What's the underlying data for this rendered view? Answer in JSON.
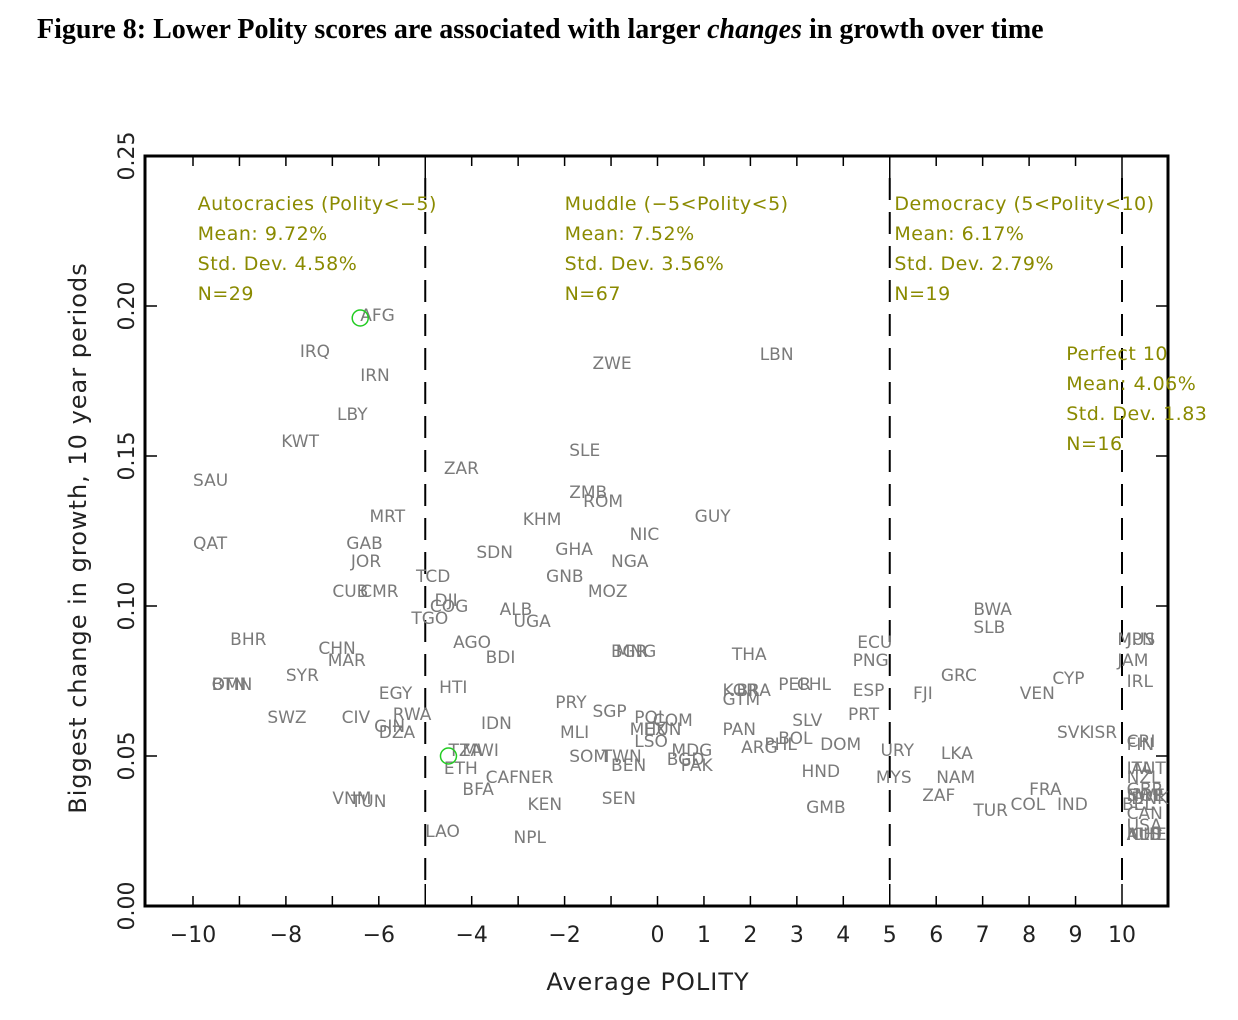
{
  "figure": {
    "title_prefix": "Figure 8:  Lower Polity scores are associated with larger ",
    "title_emph": "changes",
    "title_suffix": " in growth over time"
  },
  "chart_data": {
    "type": "scatter",
    "title": "Figure 8: Lower Polity scores are associated with larger changes in growth over time",
    "xlabel": "Average POLITY",
    "ylabel": "Biggest change in growth, 10 year periods",
    "xlim": [
      -11,
      11
    ],
    "ylim": [
      0,
      0.25
    ],
    "xticks": [
      -10,
      -8,
      -6,
      -4,
      -2,
      0,
      1,
      2,
      3,
      4,
      5,
      6,
      7,
      8,
      9,
      10
    ],
    "xtick_labels": [
      "-10",
      "-8",
      "-6",
      "-4",
      "-2",
      "0",
      "1",
      "2",
      "3",
      "4",
      "5",
      "6",
      "7",
      "8",
      "9",
      "10"
    ],
    "yticks": [
      0,
      0.05,
      0.1,
      0.15,
      0.2,
      0.25
    ],
    "ytick_labels": [
      "0.00",
      "0.05",
      "0.10",
      "0.15",
      "0.20",
      "0.25"
    ],
    "grid": false,
    "dividers": [
      -5,
      5,
      10
    ],
    "highlighted_points": [
      {
        "x": -6.4,
        "y": 0.196,
        "color": "#22cc22"
      },
      {
        "x": -4.5,
        "y": 0.05,
        "color": "#22cc22"
      }
    ],
    "annotations": [
      {
        "lines": [
          "Autocracies (Polity<-5)",
          "Mean: 9.72%",
          "Std. Dev. 4.58%",
          "N=29"
        ],
        "x": -9.9,
        "y": 0.232
      },
      {
        "lines": [
          "Muddle (-5<Polity<5)",
          "Mean: 7.52%",
          "Std. Dev. 3.56%",
          "N=67"
        ],
        "x": -2.0,
        "y": 0.232
      },
      {
        "lines": [
          "Democracy (5<Polity<10)",
          "Mean: 6.17%",
          "Std. Dev. 2.79%",
          "N=19"
        ],
        "x": 5.1,
        "y": 0.232
      },
      {
        "lines": [
          "Perfect 10",
          "Mean: 4.06%",
          "Std. Dev. 1.83",
          "N=16"
        ],
        "x": 8.8,
        "y": 0.182
      }
    ],
    "points": [
      {
        "label": "AFG",
        "x": -6.4,
        "y": 0.197
      },
      {
        "label": "IRQ",
        "x": -7.7,
        "y": 0.185
      },
      {
        "label": "IRN",
        "x": -6.4,
        "y": 0.177
      },
      {
        "label": "LBY",
        "x": -6.9,
        "y": 0.164
      },
      {
        "label": "KWT",
        "x": -8.1,
        "y": 0.155
      },
      {
        "label": "SAU",
        "x": -10.0,
        "y": 0.142
      },
      {
        "label": "QAT",
        "x": -10.0,
        "y": 0.121
      },
      {
        "label": "MRT",
        "x": -6.2,
        "y": 0.13
      },
      {
        "label": "GAB",
        "x": -6.7,
        "y": 0.121
      },
      {
        "label": "JOR",
        "x": -6.6,
        "y": 0.115
      },
      {
        "label": "CUB",
        "x": -7.0,
        "y": 0.105
      },
      {
        "label": "CMR",
        "x": -6.4,
        "y": 0.105
      },
      {
        "label": "TCD",
        "x": -5.2,
        "y": 0.11
      },
      {
        "label": "DJI",
        "x": -4.8,
        "y": 0.102
      },
      {
        "label": "COG",
        "x": -4.9,
        "y": 0.1
      },
      {
        "label": "TGO",
        "x": -5.3,
        "y": 0.096
      },
      {
        "label": "BHR",
        "x": -9.2,
        "y": 0.089
      },
      {
        "label": "CHN",
        "x": -7.3,
        "y": 0.086
      },
      {
        "label": "MAR",
        "x": -7.1,
        "y": 0.082
      },
      {
        "label": "SYR",
        "x": -8.0,
        "y": 0.077
      },
      {
        "label": "BTN",
        "x": -9.6,
        "y": 0.074
      },
      {
        "label": "OMN",
        "x": -9.6,
        "y": 0.074
      },
      {
        "label": "EGY",
        "x": -6.0,
        "y": 0.071
      },
      {
        "label": "SWZ",
        "x": -8.4,
        "y": 0.063
      },
      {
        "label": "CIV",
        "x": -6.8,
        "y": 0.063
      },
      {
        "label": "RWA",
        "x": -5.7,
        "y": 0.064
      },
      {
        "label": "GIN",
        "x": -6.1,
        "y": 0.06
      },
      {
        "label": "DZA",
        "x": -6.0,
        "y": 0.058
      },
      {
        "label": "VNM",
        "x": -7.0,
        "y": 0.036
      },
      {
        "label": "TUN",
        "x": -6.6,
        "y": 0.035
      },
      {
        "label": "ZAR",
        "x": -4.6,
        "y": 0.146
      },
      {
        "label": "SDN",
        "x": -3.9,
        "y": 0.118
      },
      {
        "label": "ALB",
        "x": -3.4,
        "y": 0.099
      },
      {
        "label": "UGA",
        "x": -3.1,
        "y": 0.095
      },
      {
        "label": "AGO",
        "x": -4.4,
        "y": 0.088
      },
      {
        "label": "BDI",
        "x": -3.7,
        "y": 0.083
      },
      {
        "label": "HTI",
        "x": -4.7,
        "y": 0.073
      },
      {
        "label": "IDN",
        "x": -3.8,
        "y": 0.061
      },
      {
        "label": "TZA",
        "x": -4.5,
        "y": 0.052
      },
      {
        "label": "MWI",
        "x": -4.2,
        "y": 0.052
      },
      {
        "label": "ETH",
        "x": -4.6,
        "y": 0.046
      },
      {
        "label": "CAF",
        "x": -3.7,
        "y": 0.043
      },
      {
        "label": "NER",
        "x": -3.0,
        "y": 0.043
      },
      {
        "label": "BFA",
        "x": -4.2,
        "y": 0.039
      },
      {
        "label": "KEN",
        "x": -2.8,
        "y": 0.034
      },
      {
        "label": "LAO",
        "x": -5.0,
        "y": 0.025
      },
      {
        "label": "NPL",
        "x": -3.1,
        "y": 0.023
      },
      {
        "label": "ZWE",
        "x": -1.4,
        "y": 0.181
      },
      {
        "label": "LBN",
        "x": 2.2,
        "y": 0.184
      },
      {
        "label": "SLE",
        "x": -1.9,
        "y": 0.152
      },
      {
        "label": "ZMB",
        "x": -1.9,
        "y": 0.138
      },
      {
        "label": "ROM",
        "x": -1.6,
        "y": 0.135
      },
      {
        "label": "KHM",
        "x": -2.9,
        "y": 0.129
      },
      {
        "label": "GUY",
        "x": 0.8,
        "y": 0.13
      },
      {
        "label": "NIC",
        "x": -0.6,
        "y": 0.124
      },
      {
        "label": "GHA",
        "x": -2.2,
        "y": 0.119
      },
      {
        "label": "NGA",
        "x": -1.0,
        "y": 0.115
      },
      {
        "label": "GNB",
        "x": -2.4,
        "y": 0.11
      },
      {
        "label": "MOZ",
        "x": -1.5,
        "y": 0.105
      },
      {
        "label": "BGR",
        "x": -1.0,
        "y": 0.085
      },
      {
        "label": "MNG",
        "x": -0.9,
        "y": 0.085
      },
      {
        "label": "THA",
        "x": 1.6,
        "y": 0.084
      },
      {
        "label": "PRY",
        "x": -2.2,
        "y": 0.068
      },
      {
        "label": "SGP",
        "x": -1.4,
        "y": 0.065
      },
      {
        "label": "POL",
        "x": -0.5,
        "y": 0.063
      },
      {
        "label": "COM",
        "x": -0.1,
        "y": 0.062
      },
      {
        "label": "MEX",
        "x": -0.6,
        "y": 0.059
      },
      {
        "label": "HUN",
        "x": -0.3,
        "y": 0.059
      },
      {
        "label": "LSO",
        "x": -0.5,
        "y": 0.055
      },
      {
        "label": "MLI",
        "x": -2.1,
        "y": 0.058
      },
      {
        "label": "SOM",
        "x": -1.9,
        "y": 0.05
      },
      {
        "label": "TWN",
        "x": -1.2,
        "y": 0.05
      },
      {
        "label": "BEN",
        "x": -1.0,
        "y": 0.047
      },
      {
        "label": "MDG",
        "x": 0.3,
        "y": 0.052
      },
      {
        "label": "BGD",
        "x": 0.2,
        "y": 0.049
      },
      {
        "label": "PAK",
        "x": 0.5,
        "y": 0.047
      },
      {
        "label": "SEN",
        "x": -1.2,
        "y": 0.036
      },
      {
        "label": "KOR",
        "x": 1.4,
        "y": 0.072
      },
      {
        "label": "BRA",
        "x": 1.7,
        "y": 0.072
      },
      {
        "label": "GTM",
        "x": 1.4,
        "y": 0.069
      },
      {
        "label": "PER",
        "x": 2.6,
        "y": 0.074
      },
      {
        "label": "CHL",
        "x": 3.0,
        "y": 0.074
      },
      {
        "label": "PAN",
        "x": 1.4,
        "y": 0.059
      },
      {
        "label": "SLV",
        "x": 2.9,
        "y": 0.062
      },
      {
        "label": "BOL",
        "x": 2.6,
        "y": 0.056
      },
      {
        "label": "PHL",
        "x": 2.3,
        "y": 0.054
      },
      {
        "label": "ARG",
        "x": 1.8,
        "y": 0.053
      },
      {
        "label": "DOM",
        "x": 3.5,
        "y": 0.054
      },
      {
        "label": "HND",
        "x": 3.1,
        "y": 0.045
      },
      {
        "label": "GMB",
        "x": 3.2,
        "y": 0.033
      },
      {
        "label": "ECU",
        "x": 4.3,
        "y": 0.088
      },
      {
        "label": "PNG",
        "x": 4.2,
        "y": 0.082
      },
      {
        "label": "ESP",
        "x": 4.2,
        "y": 0.072
      },
      {
        "label": "PRT",
        "x": 4.1,
        "y": 0.064
      },
      {
        "label": "URY",
        "x": 4.8,
        "y": 0.052
      },
      {
        "label": "MYS",
        "x": 4.7,
        "y": 0.043
      },
      {
        "label": "BWA",
        "x": 6.8,
        "y": 0.099
      },
      {
        "label": "SLB",
        "x": 6.8,
        "y": 0.093
      },
      {
        "label": "GRC",
        "x": 6.1,
        "y": 0.077
      },
      {
        "label": "FJI",
        "x": 5.5,
        "y": 0.071
      },
      {
        "label": "VEN",
        "x": 7.8,
        "y": 0.071
      },
      {
        "label": "CYP",
        "x": 8.5,
        "y": 0.076
      },
      {
        "label": "LKA",
        "x": 6.1,
        "y": 0.051
      },
      {
        "label": "NAM",
        "x": 6.0,
        "y": 0.043
      },
      {
        "label": "ZAF",
        "x": 5.7,
        "y": 0.037
      },
      {
        "label": "TUR",
        "x": 6.8,
        "y": 0.032
      },
      {
        "label": "COL",
        "x": 7.6,
        "y": 0.034
      },
      {
        "label": "FRA",
        "x": 8.0,
        "y": 0.039
      },
      {
        "label": "IND",
        "x": 8.6,
        "y": 0.034
      },
      {
        "label": "SVK",
        "x": 8.6,
        "y": 0.058
      },
      {
        "label": "ISR",
        "x": 9.3,
        "y": 0.058
      },
      {
        "label": "MUS",
        "x": 9.9,
        "y": 0.089
      },
      {
        "label": "JPN",
        "x": 10.1,
        "y": 0.089
      },
      {
        "label": "JAM",
        "x": 9.9,
        "y": 0.082
      },
      {
        "label": "IRL",
        "x": 10.1,
        "y": 0.075
      },
      {
        "label": "CRI",
        "x": 10.1,
        "y": 0.055
      },
      {
        "label": "FIN",
        "x": 10.1,
        "y": 0.054
      },
      {
        "label": "ITA",
        "x": 10.1,
        "y": 0.046
      },
      {
        "label": "AUT",
        "x": 10.2,
        "y": 0.046
      },
      {
        "label": "NZL",
        "x": 10.1,
        "y": 0.043
      },
      {
        "label": "GBR",
        "x": 10.1,
        "y": 0.039
      },
      {
        "label": "SWE",
        "x": 10.1,
        "y": 0.037
      },
      {
        "label": "NOR",
        "x": 10.1,
        "y": 0.037
      },
      {
        "label": "DNK",
        "x": 10.2,
        "y": 0.036
      },
      {
        "label": "BEL",
        "x": 10.0,
        "y": 0.034
      },
      {
        "label": "CAN",
        "x": 10.1,
        "y": 0.031
      },
      {
        "label": "USA",
        "x": 10.1,
        "y": 0.027
      },
      {
        "label": "AUS",
        "x": 10.1,
        "y": 0.024
      },
      {
        "label": "NLD",
        "x": 10.1,
        "y": 0.024
      },
      {
        "label": "CHE",
        "x": 10.2,
        "y": 0.024
      }
    ]
  }
}
